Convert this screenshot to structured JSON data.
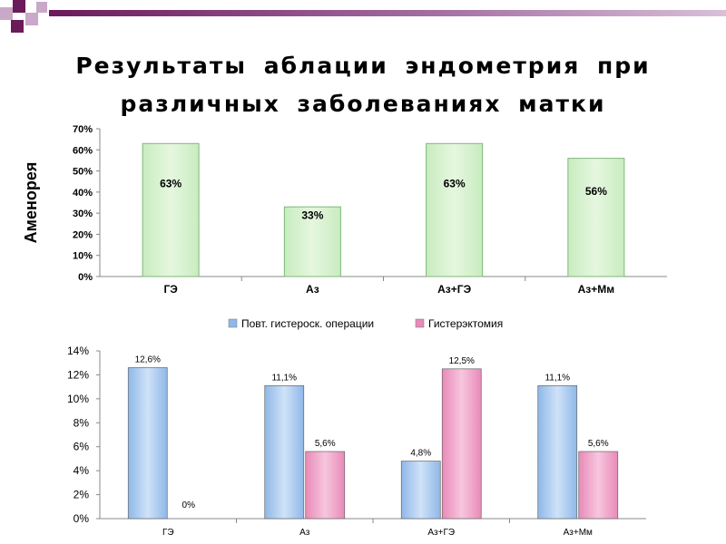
{
  "title": {
    "line1": "Результаты аблации эндометрия при",
    "line2": "различных заболеваниях матки"
  },
  "colors": {
    "deco_dark": "#6b1a5a",
    "deco_light": "#c9a8c8",
    "green_bar": "#c8ecc0",
    "green_edge": "#7fb87a",
    "blue_bar": "#8fb8e8",
    "pink_bar": "#e88ab8"
  },
  "chart_data": [
    {
      "type": "bar",
      "categories": [
        "ГЭ",
        "Аз",
        "Аз+ГЭ",
        "Аз+Мм"
      ],
      "values": [
        63,
        33,
        63,
        56
      ],
      "data_labels": [
        "63%",
        "33%",
        "63%",
        "56%"
      ],
      "ylabel": "Аменорея",
      "ylim": [
        0,
        70
      ],
      "yticks": [
        "0%",
        "10%",
        "20%",
        "30%",
        "40%",
        "50%",
        "60%",
        "70%"
      ],
      "ytick_values": [
        0,
        10,
        20,
        30,
        40,
        50,
        60,
        70
      ],
      "grid": false,
      "legend": "none"
    },
    {
      "type": "bar",
      "categories": [
        "ГЭ",
        "Аз",
        "Аз+ГЭ",
        "Аз+Мм"
      ],
      "series": [
        {
          "name": "Повт. гистероск. операции",
          "values": [
            12.6,
            11.1,
            4.8,
            11.1
          ],
          "labels": [
            "12,6%",
            "11,1%",
            "4,8%",
            "11,1%"
          ]
        },
        {
          "name": "Гистерэктомия",
          "values": [
            0,
            5.6,
            12.5,
            5.6
          ],
          "labels": [
            "0%",
            "5,6%",
            "12,5%",
            "5,6%"
          ]
        }
      ],
      "ylim": [
        0,
        14
      ],
      "yticks": [
        "0%",
        "2%",
        "4%",
        "6%",
        "8%",
        "10%",
        "12%",
        "14%"
      ],
      "ytick_values": [
        0,
        2,
        4,
        6,
        8,
        10,
        12,
        14
      ],
      "grid": false,
      "legend": "top"
    }
  ]
}
